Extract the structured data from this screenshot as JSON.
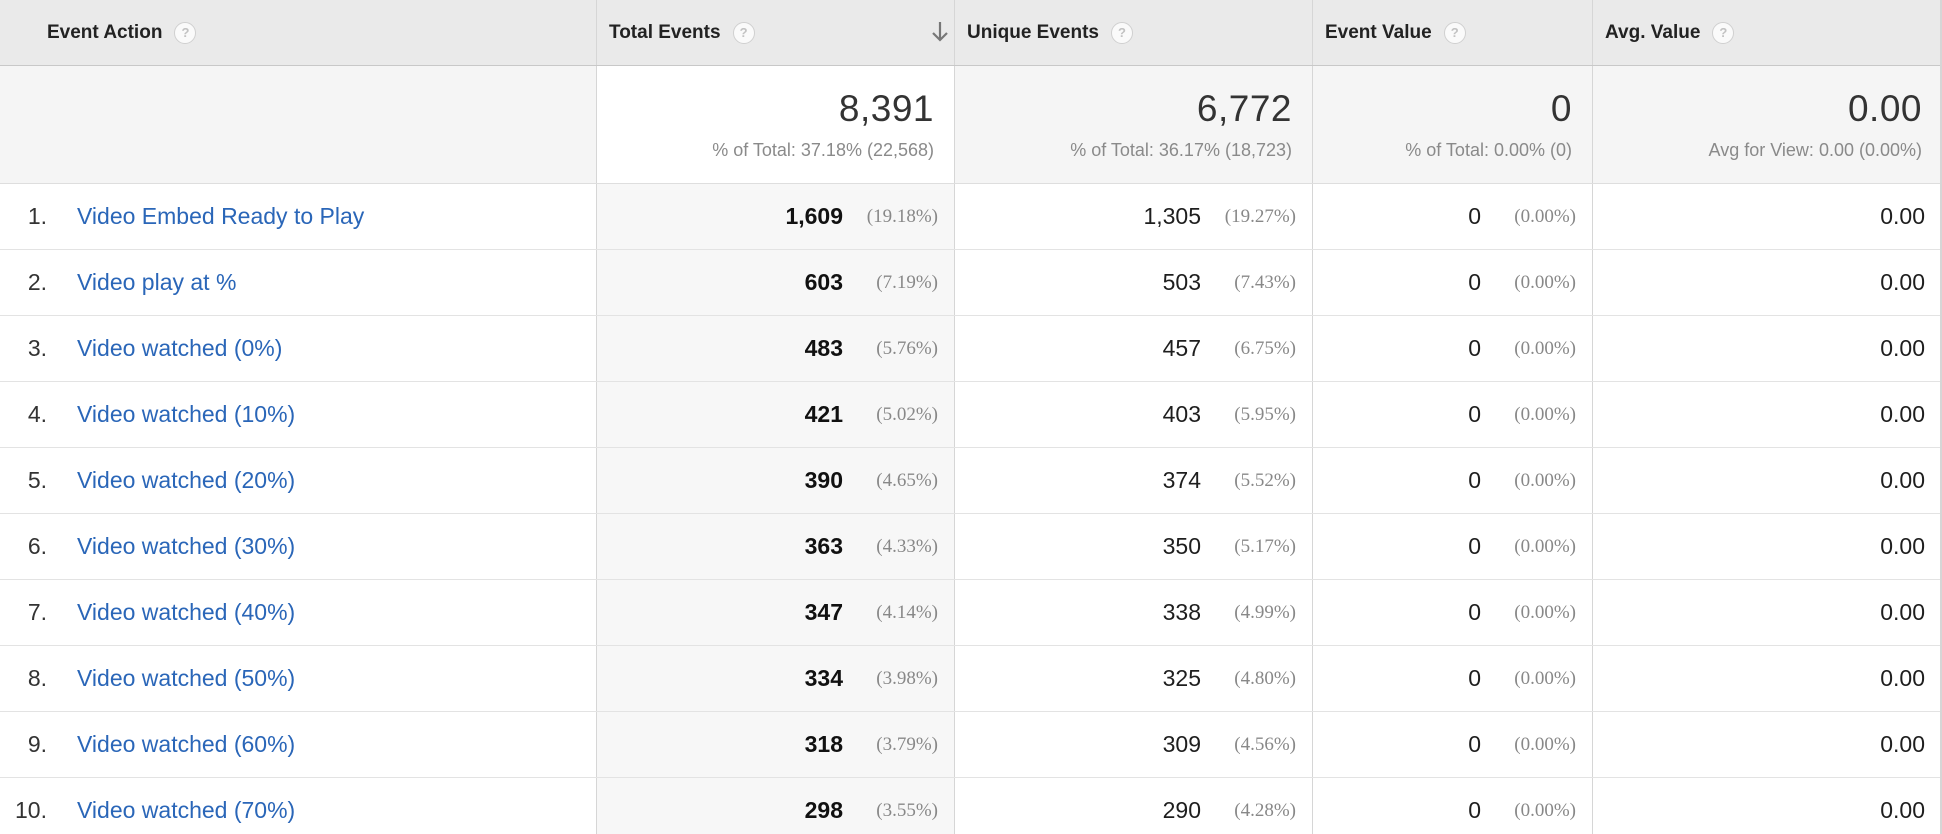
{
  "columns": {
    "event_action": "Event Action",
    "total_events": "Total Events",
    "unique_events": "Unique Events",
    "event_value": "Event Value",
    "avg_value": "Avg. Value"
  },
  "help_glyph": "?",
  "totals": {
    "total_events": {
      "value": "8,391",
      "sub": "% of Total: 37.18% (22,568)"
    },
    "unique_events": {
      "value": "6,772",
      "sub": "% of Total: 36.17% (18,723)"
    },
    "event_value": {
      "value": "0",
      "sub": "% of Total: 0.00% (0)"
    },
    "avg_value": {
      "value": "0.00",
      "sub": "Avg for View: 0.00 (0.00%)"
    }
  },
  "rows": [
    {
      "rank": "1.",
      "action": "Video Embed Ready to Play",
      "total": "1,609",
      "total_pct": "(19.18%)",
      "unique": "1,305",
      "unique_pct": "(19.27%)",
      "value": "0",
      "value_pct": "(0.00%)",
      "avg": "0.00"
    },
    {
      "rank": "2.",
      "action": "Video play at %",
      "total": "603",
      "total_pct": "(7.19%)",
      "unique": "503",
      "unique_pct": "(7.43%)",
      "value": "0",
      "value_pct": "(0.00%)",
      "avg": "0.00"
    },
    {
      "rank": "3.",
      "action": "Video watched (0%)",
      "total": "483",
      "total_pct": "(5.76%)",
      "unique": "457",
      "unique_pct": "(6.75%)",
      "value": "0",
      "value_pct": "(0.00%)",
      "avg": "0.00"
    },
    {
      "rank": "4.",
      "action": "Video watched (10%)",
      "total": "421",
      "total_pct": "(5.02%)",
      "unique": "403",
      "unique_pct": "(5.95%)",
      "value": "0",
      "value_pct": "(0.00%)",
      "avg": "0.00"
    },
    {
      "rank": "5.",
      "action": "Video watched (20%)",
      "total": "390",
      "total_pct": "(4.65%)",
      "unique": "374",
      "unique_pct": "(5.52%)",
      "value": "0",
      "value_pct": "(0.00%)",
      "avg": "0.00"
    },
    {
      "rank": "6.",
      "action": "Video watched (30%)",
      "total": "363",
      "total_pct": "(4.33%)",
      "unique": "350",
      "unique_pct": "(5.17%)",
      "value": "0",
      "value_pct": "(0.00%)",
      "avg": "0.00"
    },
    {
      "rank": "7.",
      "action": "Video watched (40%)",
      "total": "347",
      "total_pct": "(4.14%)",
      "unique": "338",
      "unique_pct": "(4.99%)",
      "value": "0",
      "value_pct": "(0.00%)",
      "avg": "0.00"
    },
    {
      "rank": "8.",
      "action": "Video watched (50%)",
      "total": "334",
      "total_pct": "(3.98%)",
      "unique": "325",
      "unique_pct": "(4.80%)",
      "value": "0",
      "value_pct": "(0.00%)",
      "avg": "0.00"
    },
    {
      "rank": "9.",
      "action": "Video watched (60%)",
      "total": "318",
      "total_pct": "(3.79%)",
      "unique": "309",
      "unique_pct": "(4.56%)",
      "value": "0",
      "value_pct": "(0.00%)",
      "avg": "0.00"
    },
    {
      "rank": "10.",
      "action": "Video watched (70%)",
      "total": "298",
      "total_pct": "(3.55%)",
      "unique": "290",
      "unique_pct": "(4.28%)",
      "value": "0",
      "value_pct": "(0.00%)",
      "avg": "0.00"
    }
  ],
  "icons": {
    "help": "help-circle-icon",
    "sort": "arrow-down-icon"
  },
  "colors": {
    "link": "#2a66b8",
    "header_bg": "#eaeaea",
    "sorted_col_bg": "#f7f7f7"
  }
}
